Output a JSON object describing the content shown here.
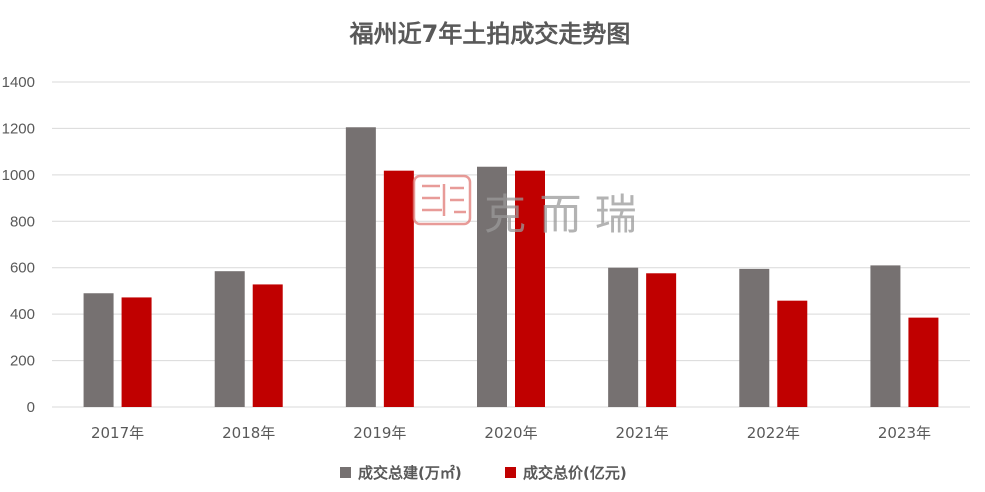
{
  "chart_data": {
    "type": "bar",
    "title": "福州近7年土拍成交走势图",
    "categories": [
      "2017年",
      "2018年",
      "2019年",
      "2020年",
      "2021年",
      "2022年",
      "2023年"
    ],
    "series": [
      {
        "name": "成交总建(万㎡)",
        "color": "#767171",
        "values": [
          490,
          585,
          1205,
          1035,
          600,
          595,
          610
        ]
      },
      {
        "name": "成交总价(亿元)",
        "color": "#c00000",
        "values": [
          472,
          528,
          1018,
          1018,
          576,
          458,
          385
        ]
      }
    ],
    "ylim": [
      0,
      1400
    ],
    "yticks": [
      0,
      200,
      400,
      600,
      800,
      1000,
      1200,
      1400
    ],
    "grid": true,
    "legend_position": "bottom"
  },
  "watermark": {
    "seal": "克",
    "text": "克 而 瑞",
    "seal_color": "#d9534f"
  }
}
